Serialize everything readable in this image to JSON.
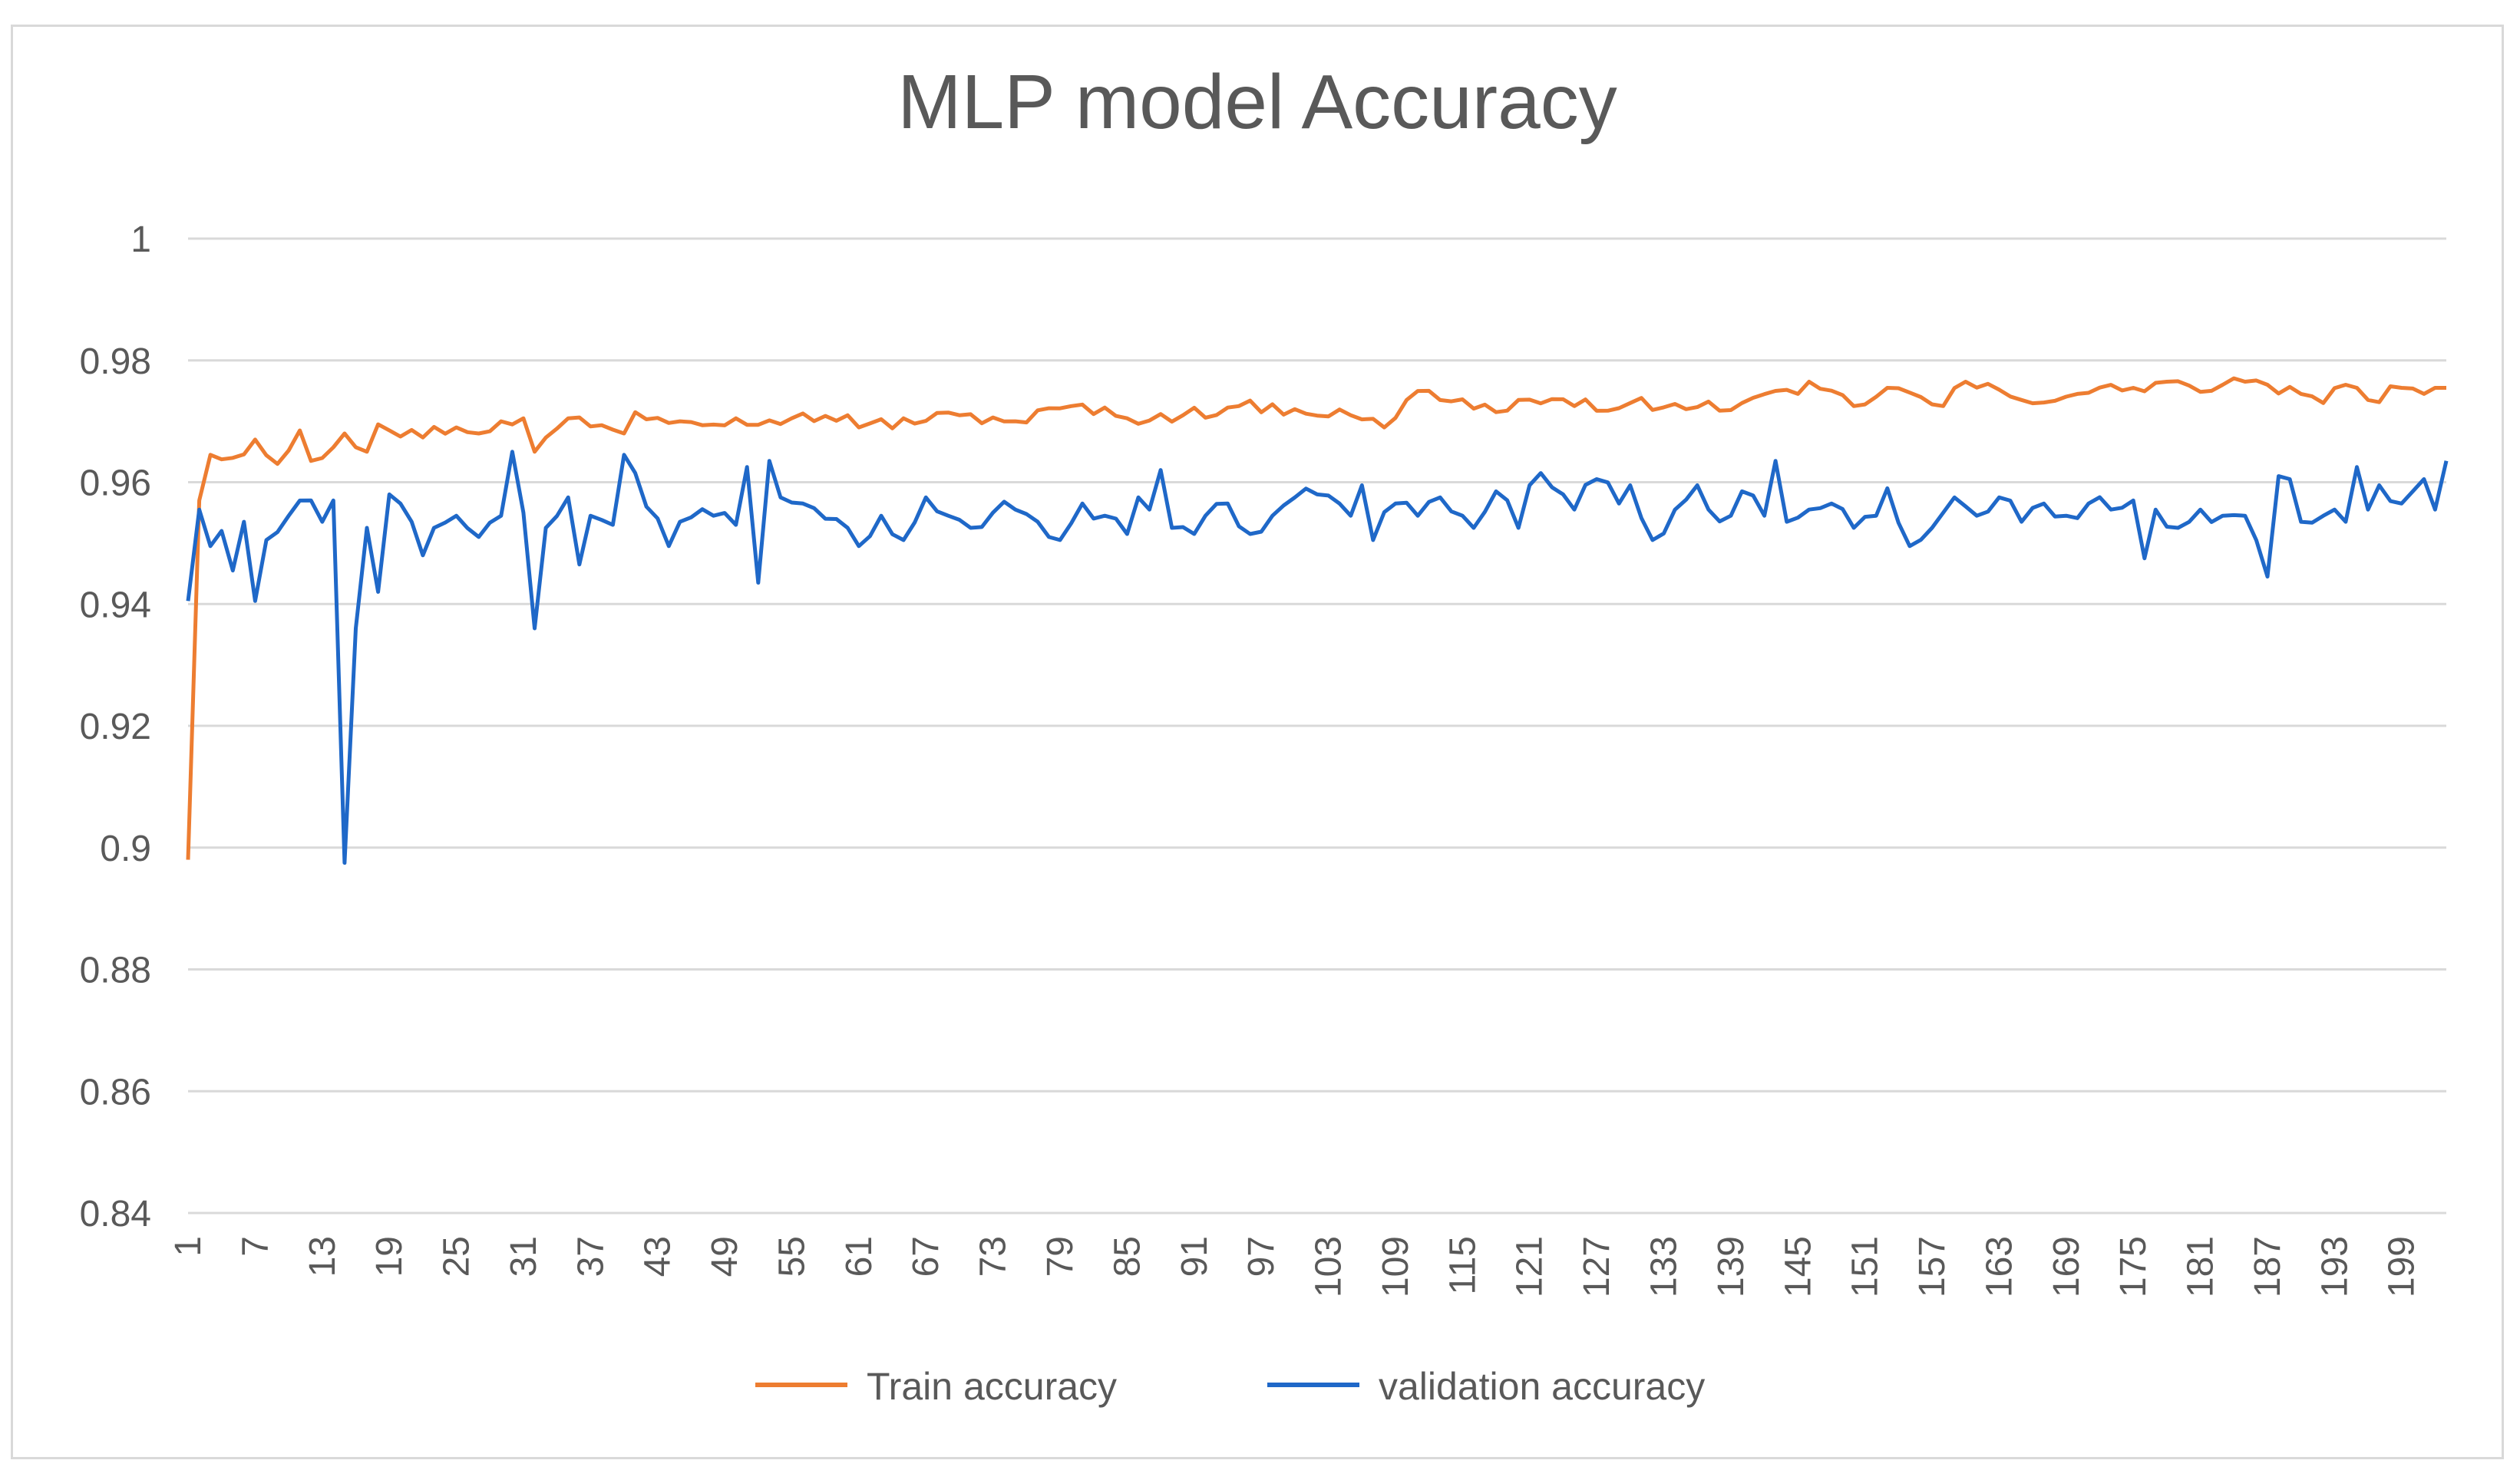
{
  "chart_data": {
    "type": "line",
    "title": "MLP model Accuracy",
    "xlabel": "",
    "ylabel": "",
    "ylim": [
      0.84,
      1.0
    ],
    "yticks": [
      0.84,
      0.86,
      0.88,
      0.9,
      0.92,
      0.94,
      0.96,
      0.98,
      1
    ],
    "ytick_labels": [
      "0.84",
      "0.86",
      "0.88",
      "0.9",
      "0.92",
      "0.94",
      "0.96",
      "0.98",
      "1"
    ],
    "grid": true,
    "legend_position": "bottom",
    "xticks": [
      1,
      7,
      13,
      19,
      25,
      31,
      37,
      43,
      49,
      55,
      61,
      67,
      73,
      79,
      85,
      91,
      97,
      103,
      109,
      115,
      121,
      127,
      133,
      139,
      145,
      151,
      157,
      163,
      169,
      175,
      181,
      187,
      193,
      199
    ],
    "xtick_labels": [
      "1",
      "7",
      "13",
      "19",
      "25",
      "31",
      "37",
      "43",
      "49",
      "55",
      "61",
      "67",
      "73",
      "79",
      "85",
      "91",
      "97",
      "103",
      "109",
      "115",
      "121",
      "127",
      "133",
      "139",
      "145",
      "151",
      "157",
      "163",
      "169",
      "175",
      "181",
      "187",
      "193",
      "199"
    ],
    "x_range": [
      1,
      203
    ],
    "series": [
      {
        "name": "Train accuracy",
        "color": "#ED7D31",
        "keypoints": [
          [
            1,
            0.898
          ],
          [
            2,
            0.957
          ],
          [
            3,
            0.9645
          ],
          [
            5,
            0.964
          ],
          [
            7,
            0.967
          ],
          [
            9,
            0.963
          ],
          [
            11,
            0.9685
          ],
          [
            12,
            0.9635
          ],
          [
            15,
            0.968
          ],
          [
            17,
            0.965
          ],
          [
            18,
            0.9695
          ],
          [
            20,
            0.9675
          ],
          [
            25,
            0.969
          ],
          [
            27,
            0.968
          ],
          [
            29,
            0.97
          ],
          [
            31,
            0.9705
          ],
          [
            32,
            0.965
          ],
          [
            35,
            0.9705
          ],
          [
            40,
            0.968
          ],
          [
            41,
            0.9715
          ],
          [
            45,
            0.97
          ],
          [
            50,
            0.9705
          ],
          [
            55,
            0.9705
          ],
          [
            60,
            0.971
          ],
          [
            61,
            0.969
          ],
          [
            70,
            0.971
          ],
          [
            75,
            0.97
          ],
          [
            80,
            0.9725
          ],
          [
            85,
            0.9705
          ],
          [
            90,
            0.971
          ],
          [
            95,
            0.9725
          ],
          [
            100,
            0.972
          ],
          [
            105,
            0.971
          ],
          [
            108,
            0.969
          ],
          [
            110,
            0.9735
          ],
          [
            112,
            0.975
          ],
          [
            118,
            0.9715
          ],
          [
            120,
            0.9735
          ],
          [
            125,
            0.9725
          ],
          [
            130,
            0.973
          ],
          [
            135,
            0.972
          ],
          [
            140,
            0.973
          ],
          [
            145,
            0.9745
          ],
          [
            146,
            0.9765
          ],
          [
            150,
            0.9725
          ],
          [
            153,
            0.9755
          ],
          [
            158,
            0.9725
          ],
          [
            160,
            0.9765
          ],
          [
            165,
            0.9735
          ],
          [
            170,
            0.9745
          ],
          [
            175,
            0.9755
          ],
          [
            178,
            0.9765
          ],
          [
            182,
            0.975
          ],
          [
            185,
            0.9765
          ],
          [
            187,
            0.976
          ],
          [
            190,
            0.9745
          ],
          [
            192,
            0.973
          ],
          [
            194,
            0.976
          ],
          [
            196,
            0.9735
          ],
          [
            199,
            0.9755
          ],
          [
            201,
            0.9745
          ],
          [
            202,
            0.9755
          ],
          [
            203,
            0.9755
          ]
        ],
        "jitter": 0.0011
      },
      {
        "name": "validation accuracy",
        "color": "#1F68C8",
        "keypoints": [
          [
            1,
            0.9405
          ],
          [
            2,
            0.9555
          ],
          [
            3,
            0.9495
          ],
          [
            4,
            0.952
          ],
          [
            5,
            0.9455
          ],
          [
            6,
            0.9535
          ],
          [
            7,
            0.9405
          ],
          [
            8,
            0.9505
          ],
          [
            10,
            0.9545
          ],
          [
            12,
            0.957
          ],
          [
            13,
            0.9535
          ],
          [
            14,
            0.957
          ],
          [
            15,
            0.8975
          ],
          [
            16,
            0.936
          ],
          [
            17,
            0.9525
          ],
          [
            18,
            0.942
          ],
          [
            19,
            0.958
          ],
          [
            20,
            0.9565
          ],
          [
            21,
            0.9535
          ],
          [
            22,
            0.948
          ],
          [
            23,
            0.9525
          ],
          [
            25,
            0.9545
          ],
          [
            27,
            0.951
          ],
          [
            29,
            0.9545
          ],
          [
            30,
            0.965
          ],
          [
            31,
            0.955
          ],
          [
            32,
            0.936
          ],
          [
            33,
            0.9525
          ],
          [
            35,
            0.9575
          ],
          [
            36,
            0.9465
          ],
          [
            37,
            0.9545
          ],
          [
            39,
            0.953
          ],
          [
            40,
            0.9645
          ],
          [
            41,
            0.9615
          ],
          [
            42,
            0.956
          ],
          [
            44,
            0.9495
          ],
          [
            45,
            0.9535
          ],
          [
            48,
            0.9545
          ],
          [
            50,
            0.953
          ],
          [
            51,
            0.9625
          ],
          [
            52,
            0.9435
          ],
          [
            53,
            0.9635
          ],
          [
            54,
            0.9575
          ],
          [
            56,
            0.9565
          ],
          [
            58,
            0.954
          ],
          [
            60,
            0.9525
          ],
          [
            61,
            0.9495
          ],
          [
            63,
            0.9545
          ],
          [
            65,
            0.9505
          ],
          [
            67,
            0.9575
          ],
          [
            69,
            0.9545
          ],
          [
            71,
            0.9525
          ],
          [
            73,
            0.955
          ],
          [
            75,
            0.9555
          ],
          [
            77,
            0.9535
          ],
          [
            79,
            0.9505
          ],
          [
            81,
            0.9565
          ],
          [
            83,
            0.9545
          ],
          [
            85,
            0.9515
          ],
          [
            86,
            0.9575
          ],
          [
            87,
            0.9555
          ],
          [
            88,
            0.962
          ],
          [
            89,
            0.9525
          ],
          [
            91,
            0.9515
          ],
          [
            92,
            0.9545
          ],
          [
            94,
            0.9565
          ],
          [
            96,
            0.9515
          ],
          [
            98,
            0.9545
          ],
          [
            100,
            0.9575
          ],
          [
            102,
            0.958
          ],
          [
            104,
            0.9565
          ],
          [
            105,
            0.9545
          ],
          [
            106,
            0.9595
          ],
          [
            107,
            0.9505
          ],
          [
            109,
            0.9565
          ],
          [
            111,
            0.9545
          ],
          [
            113,
            0.9575
          ],
          [
            115,
            0.9545
          ],
          [
            116,
            0.9525
          ],
          [
            118,
            0.9585
          ],
          [
            120,
            0.9525
          ],
          [
            121,
            0.9595
          ],
          [
            122,
            0.9615
          ],
          [
            124,
            0.958
          ],
          [
            125,
            0.9555
          ],
          [
            127,
            0.9605
          ],
          [
            129,
            0.9565
          ],
          [
            130,
            0.9595
          ],
          [
            132,
            0.9505
          ],
          [
            134,
            0.9555
          ],
          [
            136,
            0.9595
          ],
          [
            137,
            0.9555
          ],
          [
            139,
            0.9545
          ],
          [
            140,
            0.9585
          ],
          [
            142,
            0.9545
          ],
          [
            143,
            0.9635
          ],
          [
            144,
            0.9535
          ],
          [
            146,
            0.9555
          ],
          [
            148,
            0.9565
          ],
          [
            150,
            0.9525
          ],
          [
            152,
            0.9545
          ],
          [
            153,
            0.959
          ],
          [
            155,
            0.9495
          ],
          [
            157,
            0.9525
          ],
          [
            159,
            0.9575
          ],
          [
            161,
            0.9545
          ],
          [
            163,
            0.9575
          ],
          [
            165,
            0.9535
          ],
          [
            167,
            0.9565
          ],
          [
            169,
            0.9545
          ],
          [
            171,
            0.9565
          ],
          [
            173,
            0.9555
          ],
          [
            175,
            0.957
          ],
          [
            176,
            0.9475
          ],
          [
            177,
            0.9555
          ],
          [
            179,
            0.9525
          ],
          [
            181,
            0.9555
          ],
          [
            183,
            0.9545
          ],
          [
            185,
            0.9545
          ],
          [
            186,
            0.9505
          ],
          [
            187,
            0.9445
          ],
          [
            188,
            0.961
          ],
          [
            189,
            0.9605
          ],
          [
            190,
            0.9535
          ],
          [
            192,
            0.9545
          ],
          [
            193,
            0.9555
          ],
          [
            194,
            0.9535
          ],
          [
            195,
            0.9625
          ],
          [
            196,
            0.9555
          ],
          [
            197,
            0.9595
          ],
          [
            199,
            0.9565
          ],
          [
            200,
            0.9585
          ],
          [
            201,
            0.9605
          ],
          [
            202,
            0.9555
          ],
          [
            203,
            0.9635
          ]
        ],
        "jitter": 0.0016
      }
    ]
  }
}
